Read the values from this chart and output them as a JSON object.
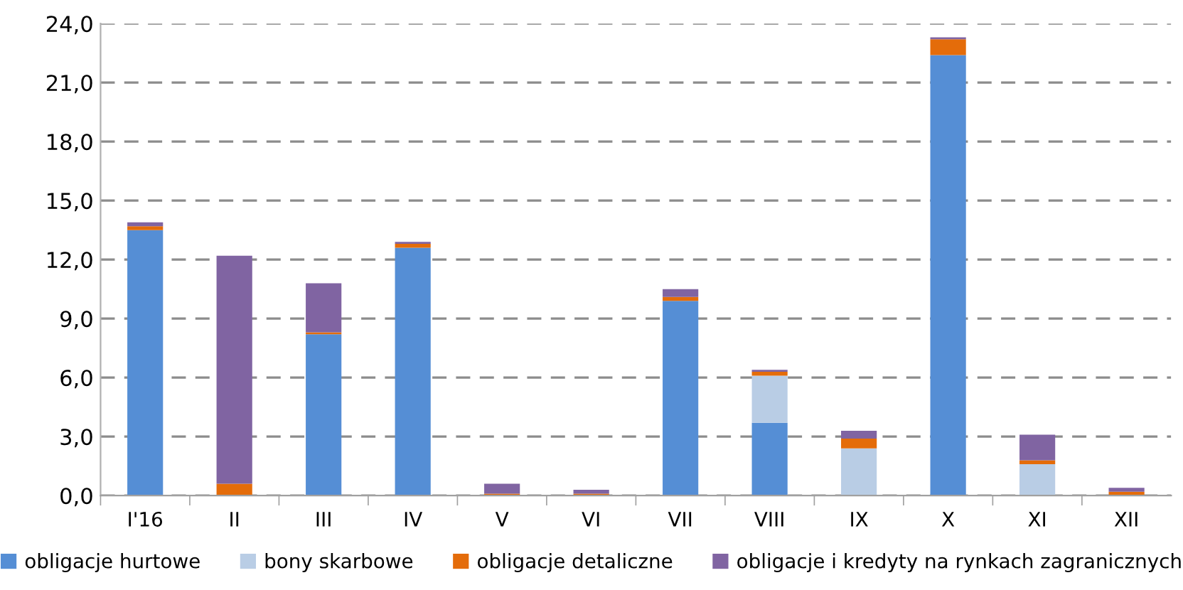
{
  "chart_data": {
    "type": "bar",
    "stacked": true,
    "categories": [
      "I'16",
      "II",
      "III",
      "IV",
      "V",
      "VI",
      "VII",
      "VIII",
      "IX",
      "X",
      "XI",
      "XII"
    ],
    "series": [
      {
        "name": "obligacje hurtowe",
        "color": "#558ed5",
        "values": [
          13.5,
          0,
          8.2,
          12.6,
          0,
          0,
          9.9,
          3.7,
          0,
          22.4,
          0,
          0
        ]
      },
      {
        "name": "bony skarbowe",
        "color": "#b9cde5",
        "values": [
          0,
          0,
          0,
          0,
          0,
          0,
          0,
          2.4,
          2.4,
          0,
          1.6,
          0
        ]
      },
      {
        "name": "obligacje detaliczne",
        "color": "#e46c0a",
        "values": [
          0.2,
          0.6,
          0.1,
          0.2,
          0.1,
          0.1,
          0.2,
          0.2,
          0.5,
          0.8,
          0.2,
          0.2
        ]
      },
      {
        "name": "obligacje i kredyty na rynkach zagranicznych",
        "color": "#8064a2",
        "values": [
          0.2,
          11.6,
          2.5,
          0.1,
          0.5,
          0.2,
          0.4,
          0.1,
          0.4,
          0.1,
          1.3,
          0.2
        ]
      }
    ],
    "ylim": [
      0,
      24
    ],
    "yticks": [
      {
        "value": 0,
        "label": "0,0"
      },
      {
        "value": 3,
        "label": "3,0"
      },
      {
        "value": 6,
        "label": "6,0"
      },
      {
        "value": 9,
        "label": "9,0"
      },
      {
        "value": 12,
        "label": "12,0"
      },
      {
        "value": 15,
        "label": "15,0"
      },
      {
        "value": 18,
        "label": "18,0"
      },
      {
        "value": 21,
        "label": "21,0"
      },
      {
        "value": 24,
        "label": "24,0"
      }
    ],
    "grid": "y",
    "legend": "bottom"
  }
}
